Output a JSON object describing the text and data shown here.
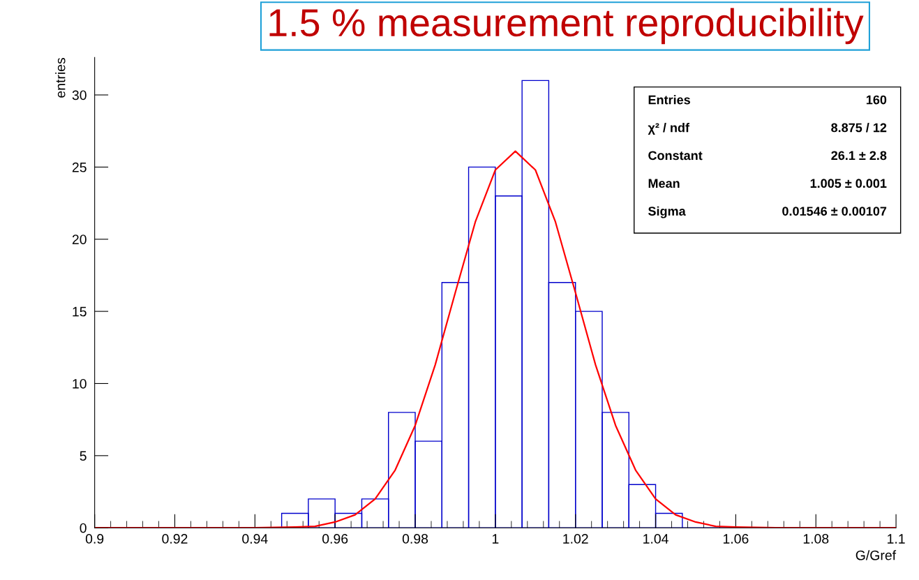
{
  "chart_data": {
    "type": "histogram",
    "title": "1.5 % measurement reproducibility",
    "xlabel": "G/Gref",
    "ylabel": "entries",
    "bins": [
      0.9,
      0.90667,
      0.91333,
      0.92,
      0.92667,
      0.93333,
      0.94,
      0.94667,
      0.95333,
      0.96,
      0.96667,
      0.97333,
      0.98,
      0.98667,
      0.99333,
      1.0,
      1.00667,
      1.01333,
      1.02,
      1.02667,
      1.03333,
      1.04,
      1.04667,
      1.05333,
      1.06,
      1.06667,
      1.07333,
      1.08,
      1.08667,
      1.09333,
      1.1
    ],
    "values": [
      0,
      0,
      0,
      0,
      0,
      0,
      0,
      1,
      2,
      1,
      2,
      8,
      6,
      17,
      25,
      23,
      31,
      17,
      15,
      8,
      3,
      1,
      0,
      0,
      0,
      0,
      0,
      0,
      0,
      0
    ],
    "color": "#0000cc",
    "series": [
      {
        "type": "line",
        "color": "#ff0000",
        "x": [
          0.9,
          0.93,
          0.94,
          0.95,
          0.955,
          0.96,
          0.965,
          0.97,
          0.975,
          0.98,
          0.985,
          0.99,
          0.995,
          1.0,
          1.005,
          1.01,
          1.015,
          1.02,
          1.025,
          1.03,
          1.035,
          1.04,
          1.045,
          1.05,
          1.055,
          1.06,
          1.07,
          1.08,
          1.1
        ],
        "values": [
          0,
          0,
          0,
          0.05,
          0.1,
          0.4,
          0.9,
          2,
          4,
          7.1,
          11.3,
          16.3,
          21.2,
          24.8,
          26.1,
          24.8,
          21.2,
          16.3,
          11.3,
          7.1,
          4,
          2,
          0.9,
          0.4,
          0.1,
          0.05,
          0,
          0,
          0
        ]
      }
    ],
    "xlim": [
      0.9,
      1.1
    ],
    "xticks": [
      0.9,
      0.92,
      0.94,
      0.96,
      0.98,
      {
        "value": 1.0,
        "label": "1"
      },
      1.02,
      1.04,
      1.06,
      1.08,
      1.1
    ],
    "ylim": [
      0,
      32.6
    ],
    "yticks": [
      0,
      5,
      10,
      15,
      20,
      25,
      30
    ],
    "grid": false,
    "annotations": [
      "Entries",
      "160",
      "χ² / ndf",
      "8.875 / 12",
      "Constant",
      "26.1 ± 2.8",
      "Mean",
      "1.005 ± 0.001",
      "Sigma",
      "0.01546 ± 0.00107"
    ]
  }
}
